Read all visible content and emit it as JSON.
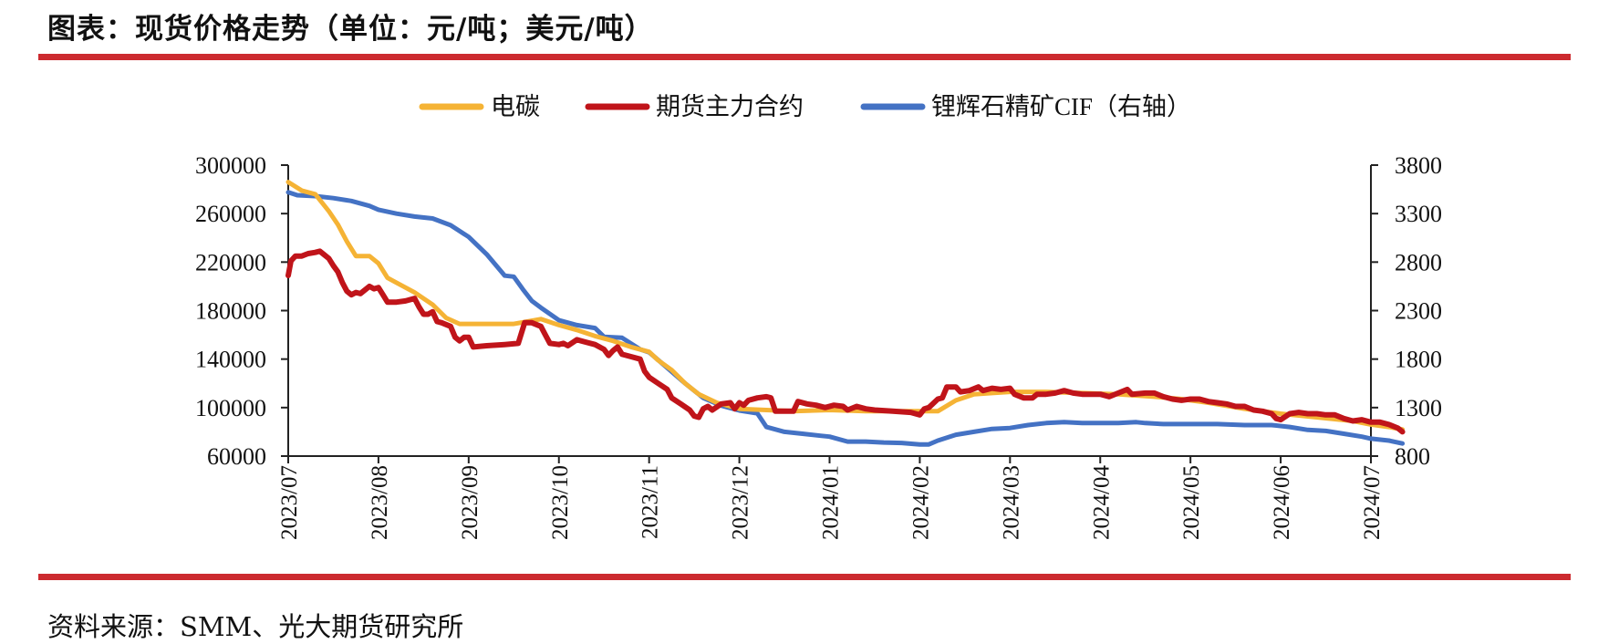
{
  "header": {
    "title": "图表：现货价格走势（单位：元/吨；美元/吨）"
  },
  "footer": {
    "source": "资料来源：SMM、光大期货研究所"
  },
  "colors": {
    "accent_rule": "#cc2a2f",
    "axis": "#222222"
  },
  "chart_data": {
    "type": "line",
    "title": "",
    "legend": {
      "position": "top"
    },
    "grid": false,
    "x_ticks": [
      "2023/07",
      "2023/08",
      "2023/09",
      "2023/10",
      "2023/11",
      "2023/12",
      "2024/01",
      "2024/02",
      "2024/03",
      "2024/04",
      "2024/05",
      "2024/06",
      "2024/07"
    ],
    "x_range": [
      "2023/07",
      "2024/07"
    ],
    "y_left": {
      "min": 60000,
      "max": 300000,
      "ticks": [
        "300000",
        "260000",
        "220000",
        "180000",
        "140000",
        "100000",
        "60000"
      ]
    },
    "y_right": {
      "min": 800,
      "max": 3800,
      "ticks": [
        "3800",
        "3300",
        "2800",
        "2300",
        "1800",
        "1300",
        "800"
      ]
    },
    "series": [
      {
        "name": "电碳",
        "color": "#f5b335",
        "axis": "left",
        "width": 5,
        "points": [
          [
            0.0,
            286000
          ],
          [
            0.15,
            279000
          ],
          [
            0.3,
            276000
          ],
          [
            0.45,
            262000
          ],
          [
            0.55,
            251000
          ],
          [
            0.65,
            237000
          ],
          [
            0.75,
            225000
          ],
          [
            0.9,
            225000
          ],
          [
            1.0,
            219000
          ],
          [
            1.1,
            207000
          ],
          [
            1.2,
            203000
          ],
          [
            1.4,
            195000
          ],
          [
            1.6,
            185000
          ],
          [
            1.75,
            174000
          ],
          [
            1.9,
            169000
          ],
          [
            2.1,
            169000
          ],
          [
            2.3,
            169000
          ],
          [
            2.5,
            169000
          ],
          [
            2.65,
            171000
          ],
          [
            2.8,
            173000
          ],
          [
            3.0,
            168000
          ],
          [
            3.2,
            164000
          ],
          [
            3.4,
            159000
          ],
          [
            3.6,
            155000
          ],
          [
            3.8,
            150000
          ],
          [
            4.0,
            146000
          ],
          [
            4.1,
            139000
          ],
          [
            4.25,
            131000
          ],
          [
            4.4,
            120000
          ],
          [
            4.55,
            111000
          ],
          [
            4.75,
            104000
          ],
          [
            5.0,
            99000
          ],
          [
            5.3,
            98000
          ],
          [
            5.6,
            97000
          ],
          [
            6.0,
            98000
          ],
          [
            6.4,
            97000
          ],
          [
            7.0,
            97000
          ],
          [
            7.2,
            97000
          ],
          [
            7.4,
            106000
          ],
          [
            7.6,
            111000
          ],
          [
            7.8,
            112000
          ],
          [
            8.0,
            113000
          ],
          [
            8.4,
            113000
          ],
          [
            8.8,
            112000
          ],
          [
            9.2,
            111000
          ],
          [
            9.6,
            109000
          ],
          [
            9.9,
            107000
          ],
          [
            10.2,
            104000
          ],
          [
            10.6,
            99000
          ],
          [
            11.0,
            95000
          ],
          [
            11.4,
            92000
          ],
          [
            11.8,
            89000
          ],
          [
            12.0,
            86000
          ],
          [
            12.2,
            84000
          ],
          [
            12.35,
            82000
          ]
        ]
      },
      {
        "name": "期货主力合约",
        "color": "#c0141a",
        "axis": "left",
        "width": 6,
        "points": [
          [
            0.0,
            209000
          ],
          [
            0.03,
            221000
          ],
          [
            0.08,
            225000
          ],
          [
            0.15,
            225000
          ],
          [
            0.22,
            227000
          ],
          [
            0.3,
            228000
          ],
          [
            0.35,
            229000
          ],
          [
            0.4,
            226000
          ],
          [
            0.45,
            223000
          ],
          [
            0.5,
            217000
          ],
          [
            0.55,
            212000
          ],
          [
            0.6,
            203000
          ],
          [
            0.65,
            196000
          ],
          [
            0.7,
            193000
          ],
          [
            0.75,
            195000
          ],
          [
            0.8,
            194000
          ],
          [
            0.85,
            197000
          ],
          [
            0.9,
            200000
          ],
          [
            0.95,
            198000
          ],
          [
            1.0,
            199000
          ],
          [
            1.05,
            193000
          ],
          [
            1.1,
            187000
          ],
          [
            1.2,
            187000
          ],
          [
            1.3,
            188000
          ],
          [
            1.4,
            190000
          ],
          [
            1.45,
            183000
          ],
          [
            1.5,
            177000
          ],
          [
            1.55,
            177000
          ],
          [
            1.6,
            179000
          ],
          [
            1.65,
            171000
          ],
          [
            1.7,
            170000
          ],
          [
            1.8,
            167000
          ],
          [
            1.85,
            158000
          ],
          [
            1.9,
            155000
          ],
          [
            1.95,
            158000
          ],
          [
            2.0,
            158000
          ],
          [
            2.05,
            150000
          ],
          [
            2.2,
            151000
          ],
          [
            2.4,
            152000
          ],
          [
            2.55,
            153000
          ],
          [
            2.62,
            170000
          ],
          [
            2.7,
            170000
          ],
          [
            2.8,
            167000
          ],
          [
            2.85,
            160000
          ],
          [
            2.9,
            153000
          ],
          [
            3.0,
            152000
          ],
          [
            3.05,
            153000
          ],
          [
            3.1,
            151000
          ],
          [
            3.2,
            156000
          ],
          [
            3.3,
            154000
          ],
          [
            3.4,
            152000
          ],
          [
            3.5,
            148000
          ],
          [
            3.55,
            143000
          ],
          [
            3.6,
            147000
          ],
          [
            3.65,
            150000
          ],
          [
            3.7,
            144000
          ],
          [
            3.8,
            142000
          ],
          [
            3.9,
            140000
          ],
          [
            3.95,
            130000
          ],
          [
            4.0,
            125000
          ],
          [
            4.1,
            120000
          ],
          [
            4.2,
            115000
          ],
          [
            4.25,
            108000
          ],
          [
            4.35,
            103000
          ],
          [
            4.45,
            98000
          ],
          [
            4.5,
            93000
          ],
          [
            4.55,
            92000
          ],
          [
            4.6,
            99000
          ],
          [
            4.65,
            101000
          ],
          [
            4.7,
            98000
          ],
          [
            4.8,
            103000
          ],
          [
            4.9,
            104000
          ],
          [
            4.95,
            99000
          ],
          [
            5.0,
            104000
          ],
          [
            5.05,
            102000
          ],
          [
            5.1,
            106000
          ],
          [
            5.2,
            108000
          ],
          [
            5.3,
            109000
          ],
          [
            5.35,
            108000
          ],
          [
            5.4,
            97000
          ],
          [
            5.5,
            97000
          ],
          [
            5.6,
            97000
          ],
          [
            5.65,
            105000
          ],
          [
            5.75,
            103000
          ],
          [
            5.85,
            102000
          ],
          [
            5.95,
            100000
          ],
          [
            6.05,
            102000
          ],
          [
            6.15,
            101000
          ],
          [
            6.2,
            98000
          ],
          [
            6.3,
            101000
          ],
          [
            6.4,
            99000
          ],
          [
            6.5,
            98000
          ],
          [
            6.7,
            97000
          ],
          [
            6.9,
            96000
          ],
          [
            7.0,
            94000
          ],
          [
            7.05,
            99000
          ],
          [
            7.1,
            100000
          ],
          [
            7.2,
            107000
          ],
          [
            7.25,
            108000
          ],
          [
            7.3,
            117000
          ],
          [
            7.4,
            117000
          ],
          [
            7.45,
            113000
          ],
          [
            7.55,
            114000
          ],
          [
            7.65,
            117000
          ],
          [
            7.7,
            114000
          ],
          [
            7.8,
            116000
          ],
          [
            7.9,
            115000
          ],
          [
            8.0,
            116000
          ],
          [
            8.05,
            111000
          ],
          [
            8.15,
            108000
          ],
          [
            8.25,
            108000
          ],
          [
            8.3,
            111000
          ],
          [
            8.4,
            111000
          ],
          [
            8.5,
            112000
          ],
          [
            8.6,
            114000
          ],
          [
            8.7,
            112000
          ],
          [
            8.8,
            111000
          ],
          [
            8.9,
            111000
          ],
          [
            9.0,
            111000
          ],
          [
            9.1,
            109000
          ],
          [
            9.2,
            112000
          ],
          [
            9.3,
            115000
          ],
          [
            9.35,
            111000
          ],
          [
            9.5,
            112000
          ],
          [
            9.6,
            112000
          ],
          [
            9.7,
            109000
          ],
          [
            9.8,
            107000
          ],
          [
            9.9,
            106000
          ],
          [
            10.0,
            107000
          ],
          [
            10.1,
            107000
          ],
          [
            10.2,
            105000
          ],
          [
            10.3,
            104000
          ],
          [
            10.4,
            103000
          ],
          [
            10.5,
            101000
          ],
          [
            10.6,
            101000
          ],
          [
            10.7,
            98000
          ],
          [
            10.8,
            97000
          ],
          [
            10.9,
            95000
          ],
          [
            10.95,
            91000
          ],
          [
            11.0,
            90000
          ],
          [
            11.1,
            95000
          ],
          [
            11.2,
            96000
          ],
          [
            11.3,
            95000
          ],
          [
            11.4,
            95000
          ],
          [
            11.5,
            94000
          ],
          [
            11.6,
            94000
          ],
          [
            11.7,
            91000
          ],
          [
            11.8,
            89000
          ],
          [
            11.9,
            90000
          ],
          [
            12.0,
            88000
          ],
          [
            12.1,
            88000
          ],
          [
            12.2,
            86000
          ],
          [
            12.3,
            83000
          ],
          [
            12.35,
            80000
          ]
        ]
      },
      {
        "name": "锂辉石精矿CIF（右轴）",
        "color": "#4472c4",
        "axis": "right",
        "width": 5,
        "points": [
          [
            0.0,
            3520
          ],
          [
            0.1,
            3490
          ],
          [
            0.3,
            3480
          ],
          [
            0.5,
            3460
          ],
          [
            0.7,
            3430
          ],
          [
            0.9,
            3380
          ],
          [
            1.0,
            3340
          ],
          [
            1.2,
            3300
          ],
          [
            1.4,
            3270
          ],
          [
            1.6,
            3250
          ],
          [
            1.8,
            3180
          ],
          [
            2.0,
            3060
          ],
          [
            2.2,
            2880
          ],
          [
            2.4,
            2660
          ],
          [
            2.5,
            2650
          ],
          [
            2.6,
            2520
          ],
          [
            2.7,
            2400
          ],
          [
            2.8,
            2330
          ],
          [
            3.0,
            2200
          ],
          [
            3.2,
            2150
          ],
          [
            3.4,
            2120
          ],
          [
            3.5,
            2030
          ],
          [
            3.7,
            2020
          ],
          [
            3.9,
            1900
          ],
          [
            4.0,
            1870
          ],
          [
            4.2,
            1710
          ],
          [
            4.4,
            1550
          ],
          [
            4.6,
            1400
          ],
          [
            4.8,
            1320
          ],
          [
            5.0,
            1270
          ],
          [
            5.2,
            1240
          ],
          [
            5.3,
            1100
          ],
          [
            5.5,
            1050
          ],
          [
            5.7,
            1030
          ],
          [
            5.9,
            1010
          ],
          [
            6.0,
            1000
          ],
          [
            6.2,
            950
          ],
          [
            6.4,
            950
          ],
          [
            6.6,
            940
          ],
          [
            6.8,
            935
          ],
          [
            7.0,
            920
          ],
          [
            7.1,
            920
          ],
          [
            7.2,
            960
          ],
          [
            7.4,
            1020
          ],
          [
            7.6,
            1050
          ],
          [
            7.8,
            1080
          ],
          [
            8.0,
            1090
          ],
          [
            8.2,
            1120
          ],
          [
            8.4,
            1140
          ],
          [
            8.6,
            1150
          ],
          [
            8.8,
            1140
          ],
          [
            9.0,
            1140
          ],
          [
            9.2,
            1140
          ],
          [
            9.4,
            1150
          ],
          [
            9.5,
            1140
          ],
          [
            9.7,
            1130
          ],
          [
            10.0,
            1130
          ],
          [
            10.3,
            1130
          ],
          [
            10.6,
            1120
          ],
          [
            10.9,
            1120
          ],
          [
            11.1,
            1100
          ],
          [
            11.3,
            1070
          ],
          [
            11.5,
            1060
          ],
          [
            11.7,
            1030
          ],
          [
            11.9,
            1000
          ],
          [
            12.0,
            980
          ],
          [
            12.2,
            960
          ],
          [
            12.35,
            930
          ]
        ]
      }
    ]
  }
}
